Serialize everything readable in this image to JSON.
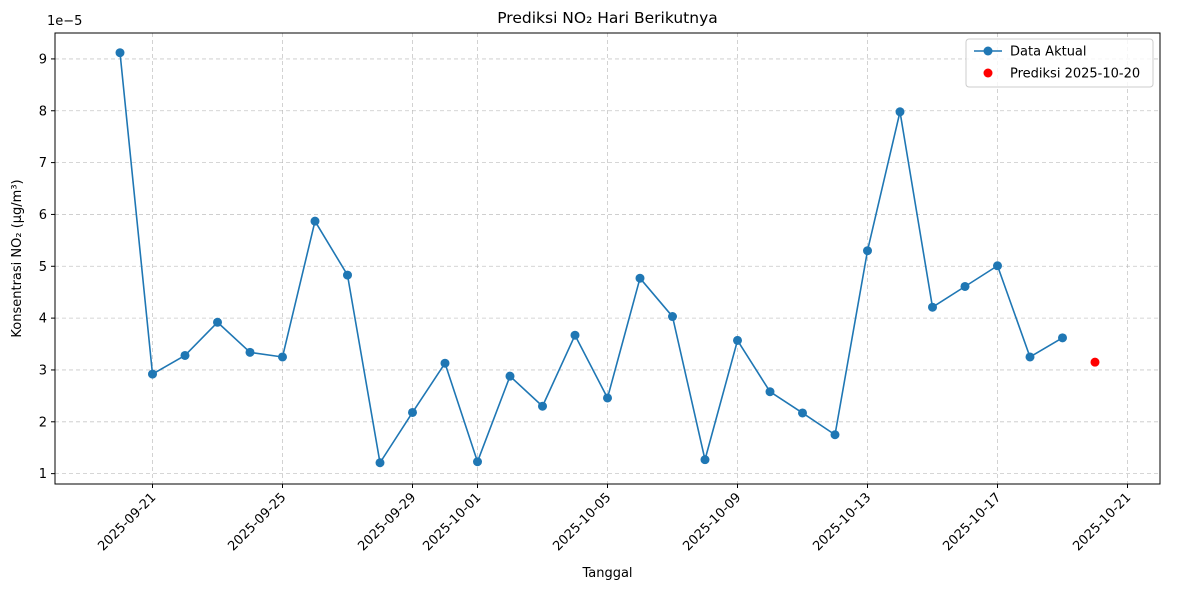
{
  "chart_data": {
    "type": "line",
    "title": "Prediksi NO₂ Hari Berikutnya",
    "xlabel": "Tanggal",
    "ylabel": "Konsentrasi NO₂ (µg/m³)",
    "y_offset_label": "1e−5",
    "y_scale_multiplier": 1e-05,
    "grid": true,
    "legend_position": "top-right",
    "xlim": [
      "2025-09-18",
      "2025-10-22"
    ],
    "ylim": [
      0.8,
      9.5
    ],
    "x_ticks": [
      "2025-09-21",
      "2025-09-25",
      "2025-09-29",
      "2025-10-01",
      "2025-10-05",
      "2025-10-09",
      "2025-10-13",
      "2025-10-17",
      "2025-10-21"
    ],
    "y_ticks": [
      1,
      2,
      3,
      4,
      5,
      6,
      7,
      8,
      9
    ],
    "series": [
      {
        "name": "Data Aktual",
        "color": "#1f77b4",
        "style": "line-marker",
        "x": [
          "2025-09-20",
          "2025-09-21",
          "2025-09-22",
          "2025-09-23",
          "2025-09-24",
          "2025-09-25",
          "2025-09-26",
          "2025-09-27",
          "2025-09-28",
          "2025-09-29",
          "2025-09-30",
          "2025-10-01",
          "2025-10-02",
          "2025-10-03",
          "2025-10-04",
          "2025-10-05",
          "2025-10-06",
          "2025-10-07",
          "2025-10-08",
          "2025-10-09",
          "2025-10-10",
          "2025-10-11",
          "2025-10-12",
          "2025-10-13",
          "2025-10-14",
          "2025-10-15",
          "2025-10-16",
          "2025-10-17",
          "2025-10-18",
          "2025-10-19"
        ],
        "values": [
          9.12,
          2.92,
          3.28,
          3.92,
          3.34,
          3.25,
          5.87,
          4.83,
          1.21,
          2.18,
          3.13,
          1.23,
          2.88,
          2.3,
          3.67,
          2.46,
          4.77,
          4.03,
          1.27,
          3.57,
          2.58,
          2.17,
          1.75,
          5.3,
          7.98,
          4.21,
          4.61,
          5.01,
          3.25,
          3.62
        ]
      },
      {
        "name": "Prediksi 2025-10-20",
        "color": "#ff0000",
        "style": "scatter",
        "x": [
          "2025-10-20"
        ],
        "values": [
          3.15
        ]
      }
    ]
  }
}
